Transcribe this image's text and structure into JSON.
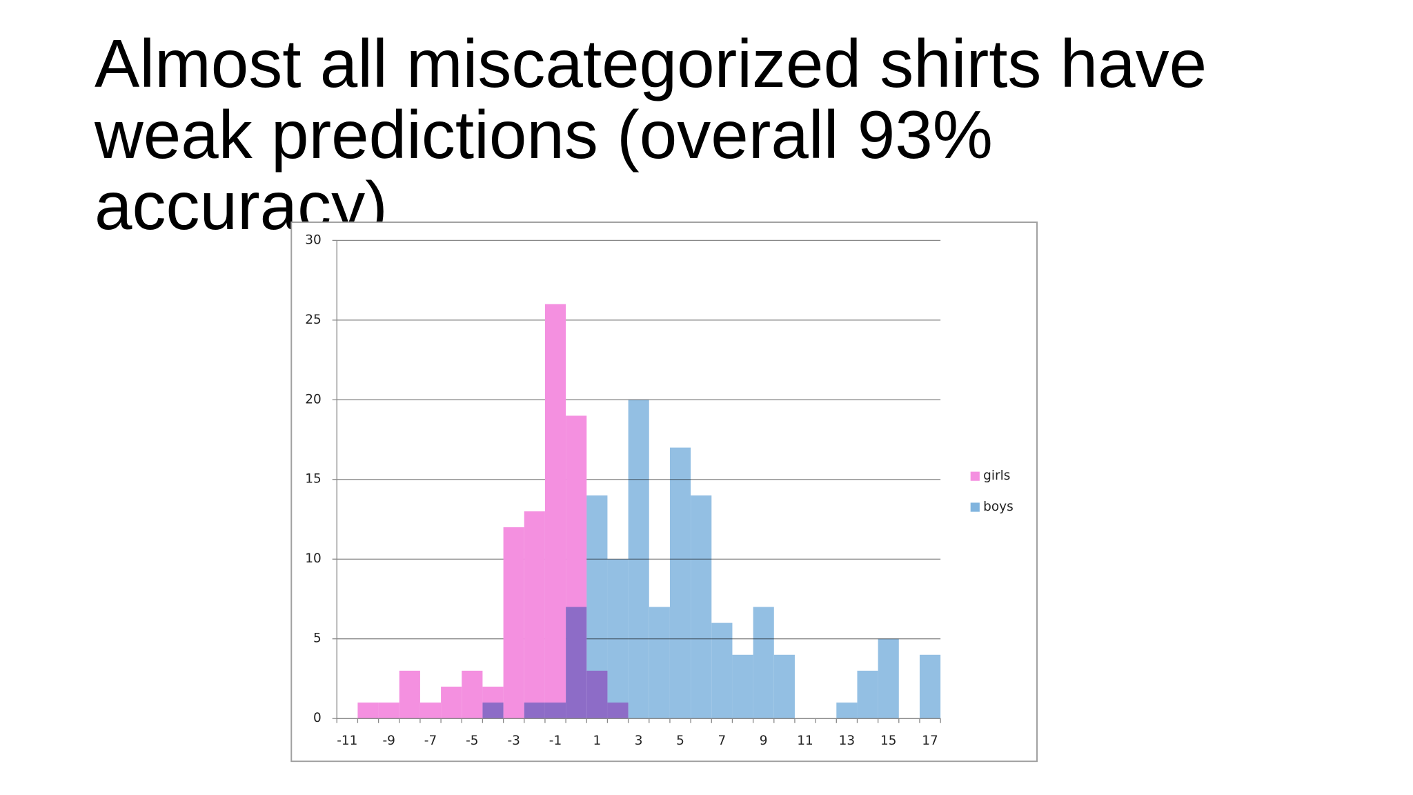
{
  "title": "Almost all miscategorized shirts have weak predictions (overall 93% accuracy)",
  "chart_data": {
    "type": "bar",
    "overlap": true,
    "categories": [
      "-11",
      null,
      "-9",
      null,
      "-7",
      null,
      "-5",
      null,
      "-3",
      null,
      "-1",
      null,
      "1",
      null,
      "3",
      null,
      "5",
      null,
      "7",
      null,
      "9",
      null,
      "11",
      null,
      "13",
      null,
      "15",
      null,
      "17"
    ],
    "series": [
      {
        "name": "girls",
        "color": "#f490e0",
        "values": [
          0,
          1,
          1,
          3,
          1,
          2,
          3,
          2,
          12,
          13,
          26,
          19,
          3,
          1,
          0,
          0,
          0,
          0,
          0,
          0,
          0,
          0,
          0,
          0,
          0,
          0,
          0,
          0,
          0
        ]
      },
      {
        "name": "boys",
        "color": "#80b4de",
        "values": [
          0,
          0,
          0,
          0,
          0,
          0,
          0,
          1,
          0,
          1,
          1,
          7,
          14,
          10,
          20,
          7,
          17,
          14,
          6,
          4,
          7,
          4,
          0,
          0,
          1,
          3,
          5,
          0,
          4
        ]
      }
    ],
    "ylim": [
      0,
      30
    ],
    "yticks": [
      0,
      5,
      10,
      15,
      20,
      25,
      30
    ],
    "grid": true,
    "legend": "right"
  }
}
